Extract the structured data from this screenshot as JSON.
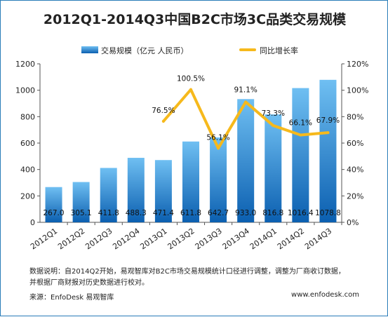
{
  "title": "2012Q1-2014Q3中国B2C市场3C品类交易规模",
  "legend": {
    "bar_label": "交易规模（亿元 人民币）",
    "line_label": "同比增长率"
  },
  "colors": {
    "bar_top": "#6fbff2",
    "bar_bottom": "#0b5fb0",
    "line": "#f6b91c",
    "border": "#2a7db8",
    "axis": "#555555"
  },
  "notes": {
    "line1": "数据说明：自2014Q2开始，易观智库对B2C市场交易规模统计口径进行调整，调整为厂商收订数据，",
    "line2": "并根据厂商财报对历史数据进行校对。",
    "source": "来源：EnfoDesk 易观智库",
    "website": "www.enfodesk.com"
  },
  "chart_data": {
    "type": "bar",
    "categories": [
      "2012Q1",
      "2012Q2",
      "2012Q3",
      "2012Q4",
      "2013Q1",
      "2013Q2",
      "2013Q3",
      "2013Q4",
      "2014Q1",
      "2014Q2",
      "2014Q3"
    ],
    "series": [
      {
        "name": "交易规模（亿元 人民币）",
        "type": "bar",
        "axis": "left",
        "values": [
          267.0,
          305.1,
          411.8,
          488.3,
          471.4,
          611.8,
          642.7,
          933.0,
          816.8,
          1016.4,
          1078.8
        ],
        "labels": [
          "267.0",
          "305.1",
          "411.8",
          "488.3",
          "471.4",
          "611.8",
          "642.7",
          "933.0",
          "816.8",
          "1016.4",
          "1078.8"
        ]
      },
      {
        "name": "同比增长率",
        "type": "line",
        "axis": "right",
        "values": [
          null,
          null,
          null,
          null,
          76.5,
          100.5,
          56.1,
          91.1,
          73.3,
          66.1,
          67.9
        ],
        "labels": [
          "",
          "",
          "",
          "",
          "76.5%",
          "100.5%",
          "56.1%",
          "91.1%",
          "73.3%",
          "66.1%",
          "67.9%"
        ]
      }
    ],
    "y_left": {
      "ylim": [
        0,
        1200
      ],
      "ticks": [
        "0",
        "200",
        "400",
        "600",
        "800",
        "1000",
        "1200"
      ]
    },
    "y_right": {
      "ylim": [
        0,
        120
      ],
      "ticks": [
        "0%",
        "20%",
        "40%",
        "60%",
        "80%",
        "100%",
        "120%"
      ]
    },
    "grid": false,
    "legend_position": "top"
  }
}
